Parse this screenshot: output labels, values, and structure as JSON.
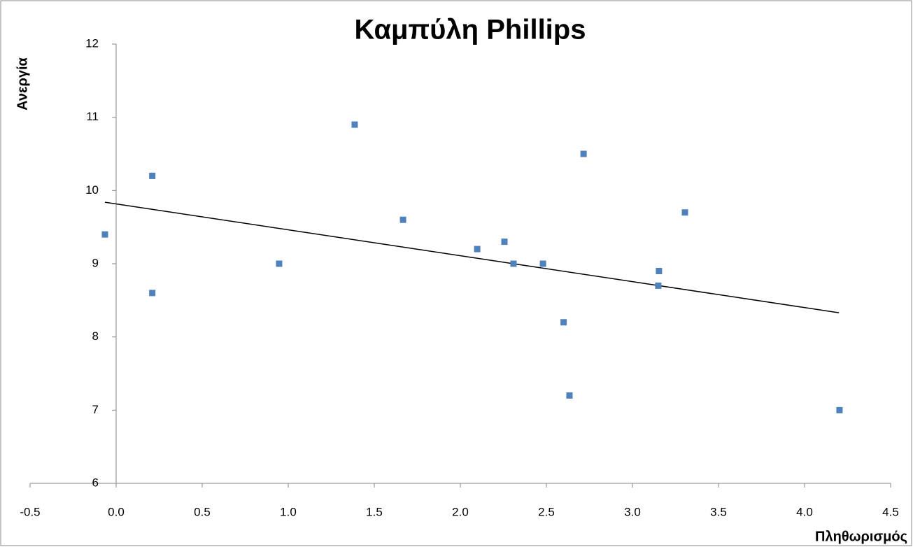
{
  "chart_data": {
    "type": "scatter",
    "title": "Καμπύλη Phillips",
    "x_label": "Πληθωρισμός",
    "y_label": "Ανεργία",
    "series": [
      {
        "color": "#4f81bd",
        "x": [
          -0.065,
          0.21,
          0.21,
          0.947,
          1.386,
          1.667,
          2.098,
          2.256,
          2.309,
          2.48,
          2.6,
          2.634,
          2.716,
          3.154,
          3.15,
          3.305,
          4.203
        ],
        "values": [
          9.4,
          10.2,
          8.6,
          9.0,
          10.9,
          9.6,
          9.2,
          9.3,
          9.0,
          9.0,
          8.2,
          7.2,
          10.5,
          8.9,
          8.7,
          9.7,
          7.0
        ]
      }
    ],
    "trendline": {
      "color": "#000000",
      "x": [
        -0.065,
        4.2
      ],
      "values": [
        9.84,
        8.33
      ]
    },
    "xlim": [
      -0.5,
      4.5
    ],
    "xticks": [
      -0.5,
      {
        "value": 0,
        "label": "0.0"
      },
      0.5,
      {
        "value": 1,
        "label": "1.0"
      },
      1.5,
      {
        "value": 2,
        "label": "2.0"
      },
      2.5,
      {
        "value": 3,
        "label": "3.0"
      },
      3.5,
      {
        "value": 4,
        "label": "4.0"
      },
      4.5
    ],
    "ylim": [
      6,
      12
    ],
    "yticks": [
      6,
      7,
      8,
      9,
      10,
      11,
      12
    ],
    "grid": false
  }
}
